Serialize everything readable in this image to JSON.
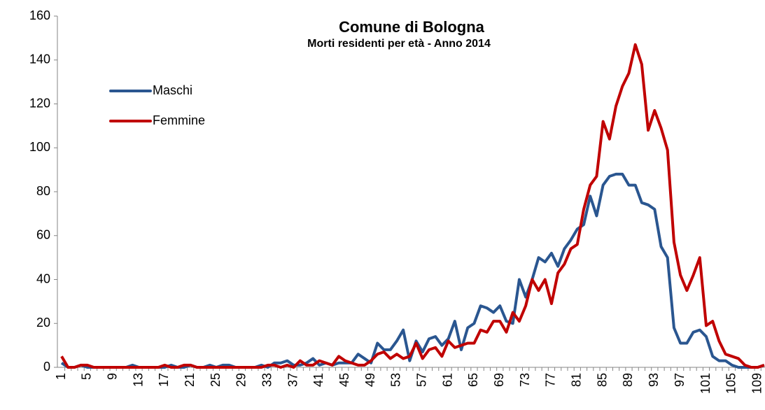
{
  "chart_data": {
    "type": "line",
    "title": "Comune di Bologna",
    "subtitle": "Morti residenti per età - Anno 2014",
    "categories": [
      "1",
      null,
      null,
      null,
      "5",
      null,
      null,
      null,
      "9",
      null,
      null,
      null,
      "13",
      null,
      null,
      null,
      "17",
      null,
      null,
      null,
      "21",
      null,
      null,
      null,
      "25",
      null,
      null,
      null,
      "29",
      null,
      null,
      null,
      "33",
      null,
      null,
      null,
      "37",
      null,
      null,
      null,
      "41",
      null,
      null,
      null,
      "45",
      null,
      null,
      null,
      "49",
      null,
      null,
      null,
      "53",
      null,
      null,
      null,
      "57",
      null,
      null,
      null,
      "61",
      null,
      null,
      null,
      "65",
      null,
      null,
      null,
      "69",
      null,
      null,
      null,
      "73",
      null,
      null,
      null,
      "77",
      null,
      null,
      null,
      "81",
      null,
      null,
      null,
      "85",
      null,
      null,
      null,
      "89",
      null,
      null,
      null,
      "93",
      null,
      null,
      null,
      "97",
      null,
      null,
      null,
      "101",
      null,
      null,
      null,
      "105",
      null,
      null,
      null,
      "109",
      null
    ],
    "series": [
      {
        "name": "Maschi",
        "color": "#2a5690",
        "values": [
          2,
          0,
          0,
          1,
          0,
          0,
          0,
          0,
          0,
          0,
          0,
          1,
          0,
          0,
          0,
          0,
          0,
          1,
          0,
          0,
          1,
          0,
          0,
          1,
          0,
          1,
          1,
          0,
          0,
          0,
          0,
          1,
          0,
          2,
          2,
          3,
          1,
          1,
          2,
          4,
          1,
          2,
          1,
          2,
          2,
          2,
          6,
          4,
          2,
          11,
          8,
          8,
          12,
          17,
          3,
          12,
          7,
          13,
          14,
          10,
          13,
          21,
          8,
          18,
          20,
          28,
          27,
          25,
          28,
          21,
          20,
          40,
          32,
          40,
          50,
          48,
          52,
          46,
          54,
          58,
          63,
          65,
          78,
          69,
          83,
          87,
          88,
          88,
          83,
          83,
          75,
          74,
          72,
          55,
          50,
          18,
          11,
          11,
          16,
          17,
          14,
          5,
          3,
          3,
          1,
          0,
          0,
          0,
          0,
          1
        ]
      },
      {
        "name": "Femmine",
        "color": "#c00000",
        "values": [
          5,
          0,
          0,
          1,
          1,
          0,
          0,
          0,
          0,
          0,
          0,
          0,
          0,
          0,
          0,
          0,
          1,
          0,
          0,
          1,
          1,
          0,
          0,
          0,
          0,
          0,
          0,
          0,
          0,
          0,
          0,
          0,
          1,
          1,
          0,
          1,
          0,
          3,
          1,
          1,
          3,
          2,
          1,
          5,
          3,
          2,
          1,
          1,
          3,
          6,
          7,
          4,
          6,
          4,
          5,
          11,
          4,
          8,
          9,
          5,
          12,
          9,
          10,
          11,
          11,
          17,
          16,
          21,
          21,
          16,
          25,
          21,
          28,
          40,
          35,
          40,
          29,
          43,
          47,
          54,
          56,
          72,
          83,
          87,
          112,
          104,
          119,
          128,
          134,
          147,
          138,
          108,
          117,
          109,
          99,
          57,
          42,
          35,
          42,
          50,
          19,
          21,
          12,
          6,
          5,
          4,
          1,
          0,
          0,
          1
        ]
      }
    ],
    "ylim": [
      0,
      160
    ],
    "yticks": [
      0,
      20,
      40,
      60,
      80,
      100,
      120,
      140,
      160
    ],
    "legend": "upper left"
  }
}
